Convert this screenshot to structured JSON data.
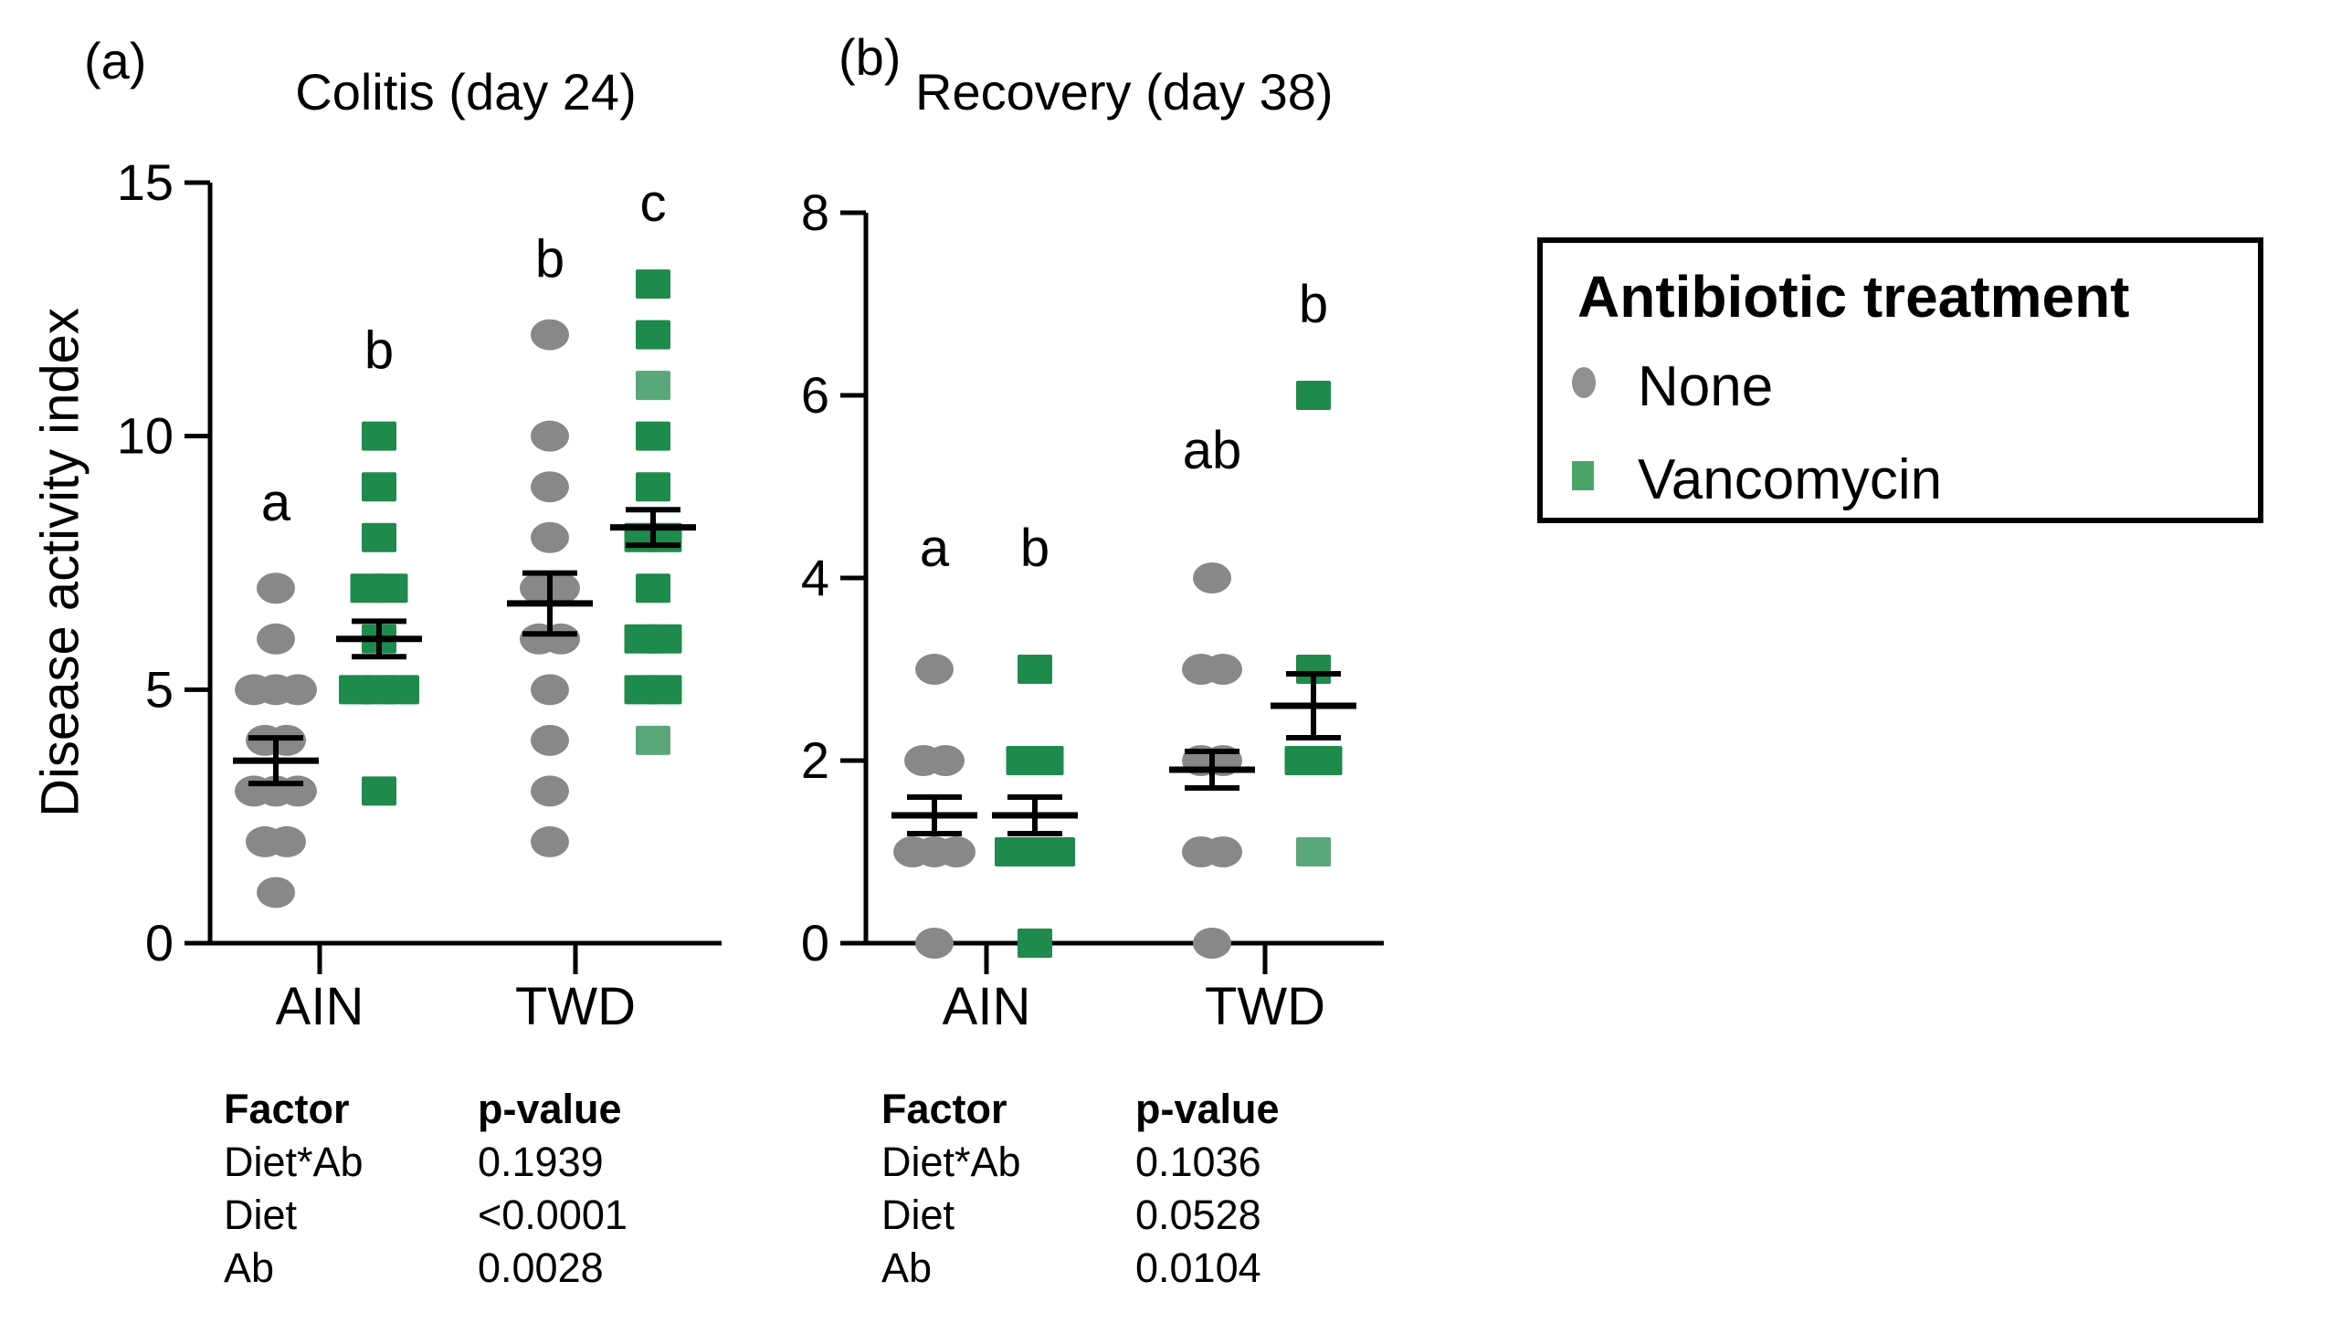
{
  "figure_type": "two-panel dot plot with significance letters and ANOVA tables",
  "legend": {
    "title": "Antibiotic treatment",
    "items": [
      {
        "label": "None",
        "marker": "circle-icon",
        "color": "#909090"
      },
      {
        "label": "Vancomycin",
        "marker": "square-icon",
        "color": "#4ba56a"
      }
    ]
  },
  "colors": {
    "gray_marker": "#888888",
    "green_marker": "#1e8a4c",
    "green_marker_light": "#5aa87a",
    "axis": "#000000"
  },
  "chart_data": [
    {
      "type": "scatter",
      "panel_label": "(a)",
      "title": "Colitis (day 24)",
      "ylabel": "Disease activity index",
      "xlabel": "",
      "ylim": [
        0,
        15
      ],
      "yticks": [
        0,
        5,
        10,
        15
      ],
      "categories": [
        "AIN",
        "TWD"
      ],
      "grid": false,
      "series": [
        {
          "category": "AIN",
          "treatment": "None",
          "marker": "circle",
          "color": "#888888",
          "letter": "a",
          "letter_v": 8.7,
          "mean": 3.6,
          "sem": 0.45,
          "values": [
            7,
            6,
            5,
            5,
            5,
            4,
            4,
            3,
            3,
            3,
            2,
            2,
            1
          ],
          "light_values": []
        },
        {
          "category": "AIN",
          "treatment": "Vancomycin",
          "marker": "square",
          "color": "#1e8a4c",
          "letter": "b",
          "letter_v": 11.7,
          "mean": 6.0,
          "sem": 0.35,
          "values": [
            10,
            9,
            8,
            7,
            7,
            6,
            5,
            5,
            5,
            3
          ],
          "light_values": []
        },
        {
          "category": "TWD",
          "treatment": "None",
          "marker": "circle",
          "color": "#888888",
          "letter": "b",
          "letter_v": 13.5,
          "mean": 6.7,
          "sem": 0.6,
          "values": [
            12,
            10,
            9,
            8,
            7,
            7,
            6,
            6,
            5,
            4,
            3,
            2
          ],
          "light_values": []
        },
        {
          "category": "TWD",
          "treatment": "Vancomycin",
          "marker": "square",
          "color": "#1e8a4c",
          "letter": "c",
          "letter_v": 14.6,
          "mean": 8.2,
          "sem": 0.35,
          "values": [
            13,
            12,
            11,
            10,
            9,
            8,
            8,
            7,
            6,
            6,
            5,
            5,
            4
          ],
          "light_values": [
            11,
            4
          ]
        }
      ],
      "stats_table": {
        "headers": [
          "Factor",
          "p-value"
        ],
        "rows": [
          [
            "Diet*Ab",
            "0.1939"
          ],
          [
            "Diet",
            "<0.0001"
          ],
          [
            "Ab",
            "0.0028"
          ]
        ]
      }
    },
    {
      "type": "scatter",
      "panel_label": "(b)",
      "title": "Recovery (day 38)",
      "ylabel": "",
      "xlabel": "",
      "ylim": [
        0,
        8
      ],
      "yticks": [
        0,
        2,
        4,
        6,
        8
      ],
      "categories": [
        "AIN",
        "TWD"
      ],
      "grid": false,
      "series": [
        {
          "category": "AIN",
          "treatment": "None",
          "marker": "circle",
          "color": "#888888",
          "letter": "a",
          "letter_v": 4.33,
          "mean": 1.4,
          "sem": 0.2,
          "values": [
            3,
            2,
            2,
            1,
            1,
            1,
            0
          ],
          "light_values": []
        },
        {
          "category": "AIN",
          "treatment": "Vancomycin",
          "marker": "square",
          "color": "#1e8a4c",
          "letter": "b",
          "letter_v": 4.33,
          "mean": 1.4,
          "sem": 0.2,
          "values": [
            3,
            2,
            2,
            1,
            1,
            1,
            0
          ],
          "light_values": []
        },
        {
          "category": "TWD",
          "treatment": "None",
          "marker": "circle",
          "color": "#888888",
          "letter": "ab",
          "letter_v": 5.4,
          "mean": 1.9,
          "sem": 0.2,
          "values": [
            4,
            3,
            3,
            2,
            2,
            1,
            1,
            0
          ],
          "light_values": []
        },
        {
          "category": "TWD",
          "treatment": "Vancomycin",
          "marker": "square",
          "color": "#1e8a4c",
          "letter": "b",
          "letter_v": 7.0,
          "mean": 2.6,
          "sem": 0.35,
          "values": [
            6,
            3,
            2,
            2,
            1
          ],
          "light_values": [
            1
          ]
        }
      ],
      "stats_table": {
        "headers": [
          "Factor",
          "p-value"
        ],
        "rows": [
          [
            "Diet*Ab",
            "0.1036"
          ],
          [
            "Diet",
            "0.0528"
          ],
          [
            "Ab",
            "0.0104"
          ]
        ]
      }
    }
  ]
}
